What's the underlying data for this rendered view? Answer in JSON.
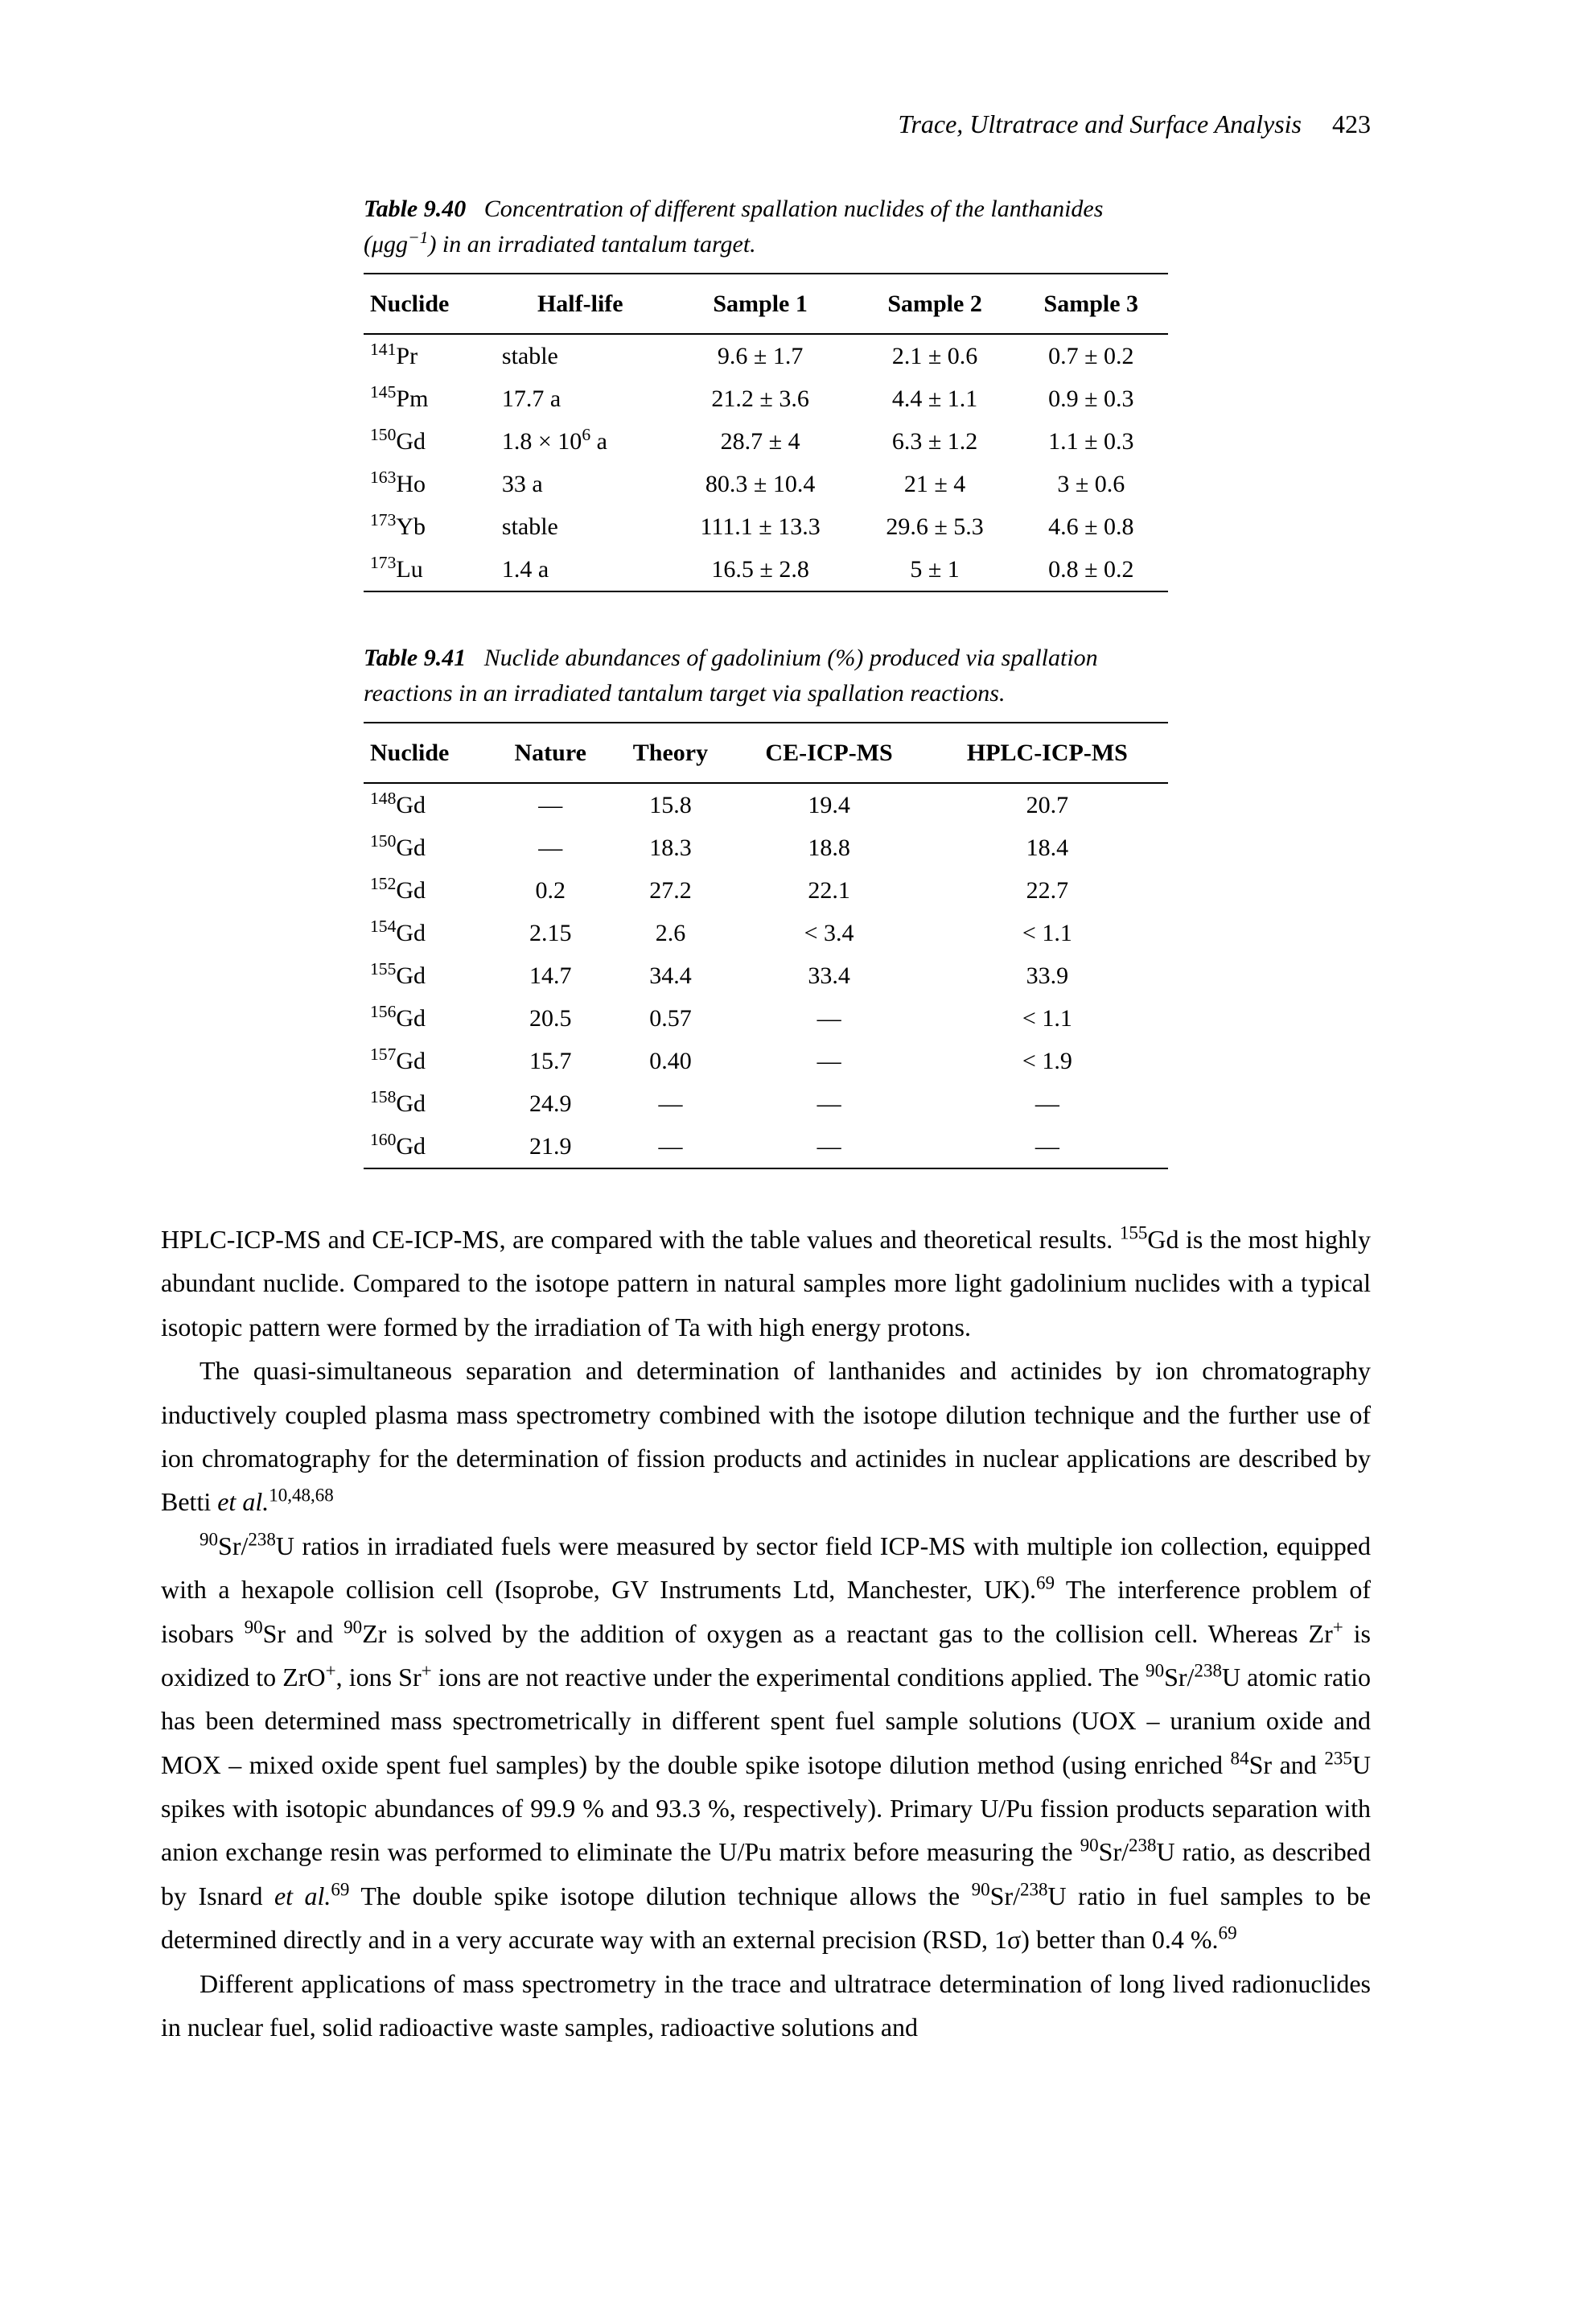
{
  "page_header": {
    "title": "Trace, Ultratrace and Surface Analysis",
    "page_number": "423"
  },
  "table940": {
    "label": "Table 9.40",
    "caption_html": "Concentration of different spallation nuclides of the lanthanides (&mu;gg<sup>−1</sup>) in an irradiated tantalum target.",
    "columns": [
      "Nuclide",
      "Half-life",
      "Sample 1",
      "Sample 2",
      "Sample 3"
    ],
    "rows": [
      [
        "<sup>141</sup>Pr",
        "stable",
        "9.6 ± 1.7",
        "2.1 ± 0.6",
        "0.7 ± 0.2"
      ],
      [
        "<sup>145</sup>Pm",
        "17.7 a",
        "21.2 ± 3.6",
        "4.4 ± 1.1",
        "0.9 ± 0.3"
      ],
      [
        "<sup>150</sup>Gd",
        "1.8 × 10<sup>6</sup> a",
        "28.7 ± 4",
        "6.3 ± 1.2",
        "1.1 ± 0.3"
      ],
      [
        "<sup>163</sup>Ho",
        "33 a",
        "80.3 ± 10.4",
        "21 ± 4",
        "3 ± 0.6"
      ],
      [
        "<sup>173</sup>Yb",
        "stable",
        "111.1 ± 13.3",
        "29.6 ± 5.3",
        "4.6 ± 0.8"
      ],
      [
        "<sup>173</sup>Lu",
        "1.4 a",
        "16.5 ± 2.8",
        "5 ± 1",
        "0.8 ± 0.2"
      ]
    ]
  },
  "table941": {
    "label": "Table 9.41",
    "caption_html": "Nuclide abundances of gadolinium (%) produced via spallation reactions in an irradiated tantalum target via spallation reactions.",
    "columns": [
      "Nuclide",
      "Nature",
      "Theory",
      "CE-ICP-MS",
      "HPLC-ICP-MS"
    ],
    "rows": [
      [
        "<sup>148</sup>Gd",
        "—",
        "15.8",
        "19.4",
        "20.7"
      ],
      [
        "<sup>150</sup>Gd",
        "—",
        "18.3",
        "18.8",
        "18.4"
      ],
      [
        "<sup>152</sup>Gd",
        "0.2",
        "27.2",
        "22.1",
        "22.7"
      ],
      [
        "<sup>154</sup>Gd",
        "2.15",
        "2.6",
        "< 3.4",
        "< 1.1"
      ],
      [
        "<sup>155</sup>Gd",
        "14.7",
        "34.4",
        "33.4",
        "33.9"
      ],
      [
        "<sup>156</sup>Gd",
        "20.5",
        "0.57",
        "—",
        "< 1.1"
      ],
      [
        "<sup>157</sup>Gd",
        "15.7",
        "0.40",
        "—",
        "< 1.9"
      ],
      [
        "<sup>158</sup>Gd",
        "24.9",
        "—",
        "—",
        "—"
      ],
      [
        "<sup>160</sup>Gd",
        "21.9",
        "—",
        "—",
        "—"
      ]
    ]
  },
  "paragraphs": [
    "HPLC-ICP-MS and CE-ICP-MS, are compared with the table values and theoretical results. <sup>155</sup>Gd is the most highly abundant nuclide. Compared to the isotope pattern in natural samples more light gadolinium nuclides with a typical isotopic pattern were formed by the irradiation of Ta with high energy protons.",
    "The quasi-simultaneous separation and determination of lanthanides and actinides by ion chromatography inductively coupled plasma mass spectrometry combined with the isotope dilution technique and the further use of ion chromatography for the determination of fission products and actinides in nuclear applications are described by Betti <i>et al.</i><sup>10,48,68</sup>",
    "<sup>90</sup>Sr/<sup>238</sup>U ratios in irradiated fuels were measured by sector field ICP-MS with multiple ion collection, equipped with a hexapole collision cell (Isoprobe, GV Instruments Ltd, Manchester, UK).<sup>69</sup> The interference problem of isobars <sup>90</sup>Sr and <sup>90</sup>Zr is solved by the addition of oxygen as a reactant gas to the collision cell. Whereas Zr<sup>+</sup> is oxidized to ZrO<sup>+</sup>, ions Sr<sup>+</sup> ions are not reactive under the experimental conditions applied. The <sup>90</sup>Sr/<sup>238</sup>U atomic ratio has been determined mass spectrometrically in different spent fuel sample solutions (UOX – uranium oxide and MOX – mixed oxide spent fuel samples) by the double spike isotope dilution method (using enriched <sup>84</sup>Sr and <sup>235</sup>U spikes with isotopic abundances of 99.9 % and 93.3 %, respectively). Primary U/Pu fission products separation with anion exchange resin was performed to eliminate the U/Pu matrix before measuring the <sup>90</sup>Sr/<sup>238</sup>U ratio, as described by Isnard <i>et al.</i><sup>69</sup> The double spike isotope dilution technique allows the <sup>90</sup>Sr/<sup>238</sup>U ratio in fuel samples to be determined directly and in a very accurate way with an external precision (RSD, 1<span class='sigma'>&sigma;</span>) better than 0.4 %.<sup>69</sup>",
    "Different applications of mass spectrometry in the trace and ultratrace determination of long lived radionuclides in nuclear fuel, solid radioactive waste samples, radioactive solutions and"
  ]
}
